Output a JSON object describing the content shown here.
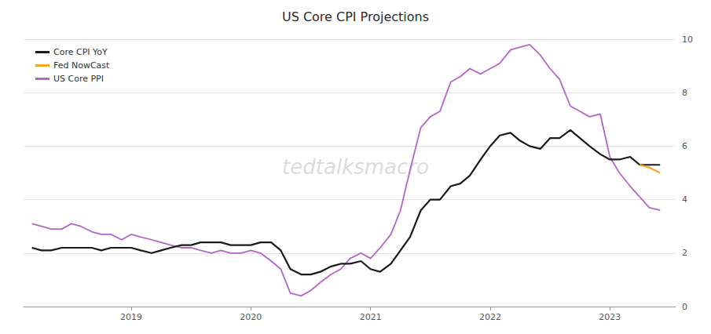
{
  "chart_data": {
    "type": "line",
    "title": "US Core CPI Projections",
    "annotations": [
      "tedtalksmacro"
    ],
    "legend": "upper left",
    "grid": true,
    "xlim": [
      2018.1,
      2023.55
    ],
    "xticks": [
      2019,
      2020,
      2021,
      2022,
      2023
    ],
    "ylim": [
      0,
      10
    ],
    "yticks": [
      0,
      2,
      4,
      6,
      8,
      10
    ],
    "series": [
      {
        "name": "Core CPI YoY",
        "color": "#1a1a1a",
        "x": [
          2018.17,
          2018.25,
          2018.33,
          2018.42,
          2018.5,
          2018.58,
          2018.67,
          2018.75,
          2018.83,
          2018.92,
          2019.0,
          2019.08,
          2019.17,
          2019.25,
          2019.33,
          2019.42,
          2019.5,
          2019.58,
          2019.67,
          2019.75,
          2019.83,
          2019.92,
          2020.0,
          2020.08,
          2020.17,
          2020.25,
          2020.33,
          2020.42,
          2020.5,
          2020.58,
          2020.67,
          2020.75,
          2020.83,
          2020.92,
          2021.0,
          2021.08,
          2021.17,
          2021.25,
          2021.33,
          2021.42,
          2021.5,
          2021.58,
          2021.67,
          2021.75,
          2021.83,
          2021.92,
          2022.0,
          2022.08,
          2022.17,
          2022.25,
          2022.33,
          2022.42,
          2022.5,
          2022.58,
          2022.67,
          2022.75,
          2022.83,
          2022.92,
          2023.0,
          2023.08,
          2023.17,
          2023.25,
          2023.33,
          2023.42
        ],
        "values": [
          2.2,
          2.1,
          2.1,
          2.2,
          2.2,
          2.2,
          2.2,
          2.1,
          2.2,
          2.2,
          2.2,
          2.1,
          2.0,
          2.1,
          2.2,
          2.3,
          2.3,
          2.4,
          2.4,
          2.4,
          2.3,
          2.3,
          2.3,
          2.4,
          2.4,
          2.1,
          1.4,
          1.2,
          1.2,
          1.3,
          1.5,
          1.6,
          1.6,
          1.7,
          1.4,
          1.3,
          1.6,
          2.1,
          2.6,
          3.6,
          4.0,
          4.0,
          4.5,
          4.6,
          4.9,
          5.5,
          6.0,
          6.4,
          6.5,
          6.2,
          6.0,
          5.9,
          6.3,
          6.3,
          6.6,
          6.3,
          6.0,
          5.7,
          5.5,
          5.5,
          5.6,
          5.3,
          5.3,
          5.3
        ]
      },
      {
        "name": "Fed NowCast",
        "color": "#f5a623",
        "x": [
          2023.25,
          2023.33,
          2023.42
        ],
        "values": [
          5.3,
          5.2,
          5.0
        ]
      },
      {
        "name": "US Core PPI",
        "color": "#b565c9",
        "x": [
          2018.17,
          2018.25,
          2018.33,
          2018.42,
          2018.5,
          2018.58,
          2018.67,
          2018.75,
          2018.83,
          2018.92,
          2019.0,
          2019.08,
          2019.17,
          2019.25,
          2019.33,
          2019.42,
          2019.5,
          2019.58,
          2019.67,
          2019.75,
          2019.83,
          2019.92,
          2020.0,
          2020.08,
          2020.17,
          2020.25,
          2020.33,
          2020.42,
          2020.5,
          2020.58,
          2020.67,
          2020.75,
          2020.83,
          2020.92,
          2021.0,
          2021.08,
          2021.17,
          2021.25,
          2021.33,
          2021.42,
          2021.5,
          2021.58,
          2021.67,
          2021.75,
          2021.83,
          2021.92,
          2022.0,
          2022.08,
          2022.17,
          2022.25,
          2022.33,
          2022.42,
          2022.5,
          2022.58,
          2022.67,
          2022.75,
          2022.83,
          2022.92,
          2023.0,
          2023.08,
          2023.17,
          2023.25,
          2023.33,
          2023.42
        ],
        "values": [
          3.1,
          3.0,
          2.9,
          2.9,
          3.1,
          3.0,
          2.8,
          2.7,
          2.7,
          2.5,
          2.7,
          2.6,
          2.5,
          2.4,
          2.3,
          2.2,
          2.2,
          2.1,
          2.0,
          2.1,
          2.0,
          2.0,
          2.1,
          2.0,
          1.7,
          1.4,
          0.5,
          0.4,
          0.6,
          0.9,
          1.2,
          1.4,
          1.8,
          2.0,
          1.8,
          2.2,
          2.7,
          3.6,
          5.1,
          6.7,
          7.1,
          7.3,
          8.4,
          8.6,
          8.9,
          8.7,
          8.9,
          9.1,
          9.6,
          9.7,
          9.8,
          9.4,
          8.9,
          8.5,
          7.5,
          7.3,
          7.1,
          7.2,
          5.6,
          5.0,
          4.5,
          4.1,
          3.7,
          3.6
        ]
      }
    ]
  }
}
